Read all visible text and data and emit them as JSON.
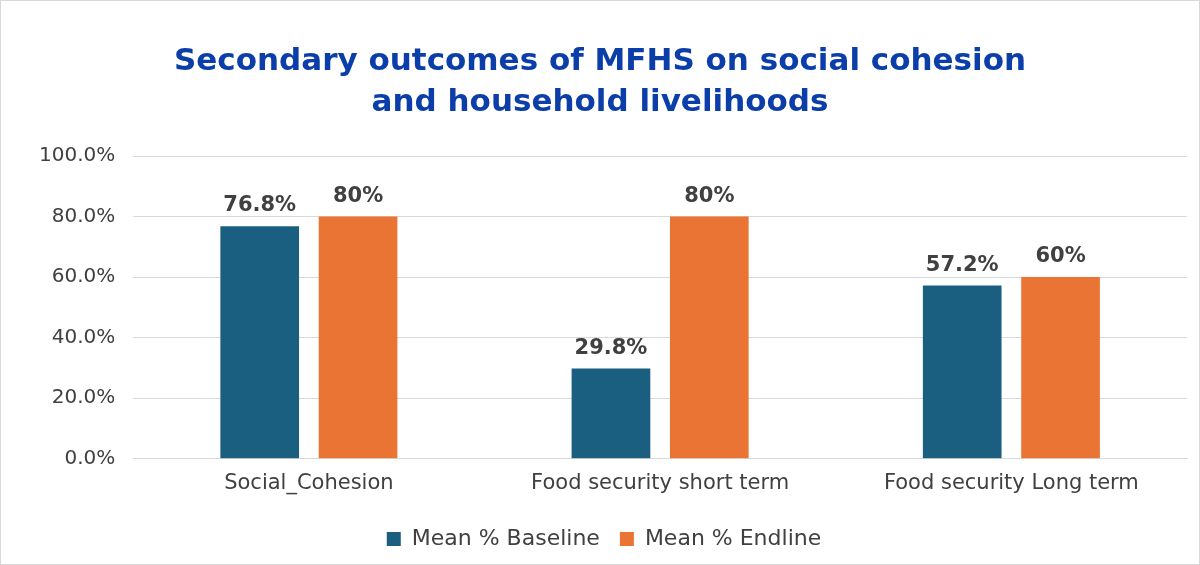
{
  "chart_data": {
    "type": "bar",
    "title": "Secondary outcomes of MFHS on social cohesion and household livelihoods",
    "categories": [
      "Social_Cohesion",
      "Food security short term",
      "Food security Long term"
    ],
    "series": [
      {
        "name": "Mean % Baseline",
        "color": "#1a5e80",
        "values": [
          76.8,
          29.8,
          57.2
        ],
        "value_labels": [
          "76.8%",
          "29.8%",
          "57.2%"
        ]
      },
      {
        "name": "Mean % Endline",
        "color": "#ea7434",
        "values": [
          80,
          80,
          60
        ],
        "value_labels": [
          "80%",
          "80%",
          "60%"
        ]
      }
    ],
    "ylim": [
      0,
      100
    ],
    "yticks": [
      {
        "value": 0,
        "label": "0.0%"
      },
      {
        "value": 20,
        "label": "20.0%"
      },
      {
        "value": 40,
        "label": "40.0%"
      },
      {
        "value": 60,
        "label": "60.0%"
      },
      {
        "value": 80,
        "label": "80.0%"
      },
      {
        "value": 100,
        "label": "100.0%"
      }
    ],
    "grid": "y",
    "legend": "bottom"
  }
}
